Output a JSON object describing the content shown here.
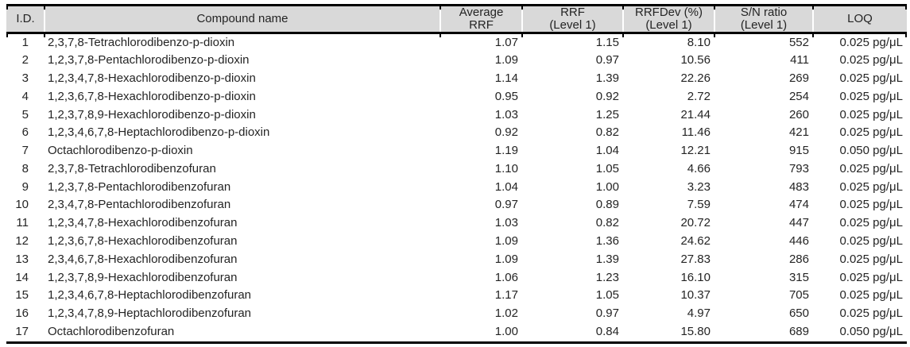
{
  "table": {
    "columns": [
      {
        "key": "id",
        "label": "I.D."
      },
      {
        "key": "name",
        "label": "Compound name"
      },
      {
        "key": "avg_rrf",
        "label": "Average\nRRF"
      },
      {
        "key": "rrf_level1",
        "label": "RRF\n(Level 1)"
      },
      {
        "key": "rrfdev_level1",
        "label": "RRFDev (%)\n(Level 1)"
      },
      {
        "key": "sn_ratio_level1",
        "label": "S/N ratio\n(Level 1)"
      },
      {
        "key": "loq",
        "label": "LOQ"
      }
    ],
    "rows": [
      {
        "id": "1",
        "name": "2,3,7,8-Tetrachlorodibenzo-p-dioxin",
        "avg_rrf": "1.07",
        "rrf_level1": "1.15",
        "rrfdev_level1": "8.10",
        "sn_ratio_level1": "552",
        "loq": "0.025 pg/μL"
      },
      {
        "id": "2",
        "name": "1,2,3,7,8-Pentachlorodibenzo-p-dioxin",
        "avg_rrf": "1.09",
        "rrf_level1": "0.97",
        "rrfdev_level1": "10.56",
        "sn_ratio_level1": "411",
        "loq": "0.025 pg/μL"
      },
      {
        "id": "3",
        "name": "1,2,3,4,7,8-Hexachlorodibenzo-p-dioxin",
        "avg_rrf": "1.14",
        "rrf_level1": "1.39",
        "rrfdev_level1": "22.26",
        "sn_ratio_level1": "269",
        "loq": "0.025 pg/μL"
      },
      {
        "id": "4",
        "name": "1,2,3,6,7,8-Hexachlorodibenzo-p-dioxin",
        "avg_rrf": "0.95",
        "rrf_level1": "0.92",
        "rrfdev_level1": "2.72",
        "sn_ratio_level1": "254",
        "loq": "0.025 pg/μL"
      },
      {
        "id": "5",
        "name": "1,2,3,7,8,9-Hexachlorodibenzo-p-dioxin",
        "avg_rrf": "1.03",
        "rrf_level1": "1.25",
        "rrfdev_level1": "21.44",
        "sn_ratio_level1": "260",
        "loq": "0.025 pg/μL"
      },
      {
        "id": "6",
        "name": "1,2,3,4,6,7,8-Heptachlorodibenzo-p-dioxin",
        "avg_rrf": "0.92",
        "rrf_level1": "0.82",
        "rrfdev_level1": "11.46",
        "sn_ratio_level1": "421",
        "loq": "0.025 pg/μL"
      },
      {
        "id": "7",
        "name": "Octachlorodibenzo-p-dioxin",
        "avg_rrf": "1.19",
        "rrf_level1": "1.04",
        "rrfdev_level1": "12.21",
        "sn_ratio_level1": "915",
        "loq": "0.050 pg/μL"
      },
      {
        "id": "8",
        "name": "2,3,7,8-Tetrachlorodibenzofuran",
        "avg_rrf": "1.10",
        "rrf_level1": "1.05",
        "rrfdev_level1": "4.66",
        "sn_ratio_level1": "793",
        "loq": "0.025 pg/μL"
      },
      {
        "id": "9",
        "name": "1,2,3,7,8-Pentachlorodibenzofuran",
        "avg_rrf": "1.04",
        "rrf_level1": "1.00",
        "rrfdev_level1": "3.23",
        "sn_ratio_level1": "483",
        "loq": "0.025 pg/μL"
      },
      {
        "id": "10",
        "name": "2,3,4,7,8-Pentachlorodibenzofuran",
        "avg_rrf": "0.97",
        "rrf_level1": "0.89",
        "rrfdev_level1": "7.59",
        "sn_ratio_level1": "474",
        "loq": "0.025 pg/μL"
      },
      {
        "id": "11",
        "name": "1,2,3,4,7,8-Hexachlorodibenzofuran",
        "avg_rrf": "1.03",
        "rrf_level1": "0.82",
        "rrfdev_level1": "20.72",
        "sn_ratio_level1": "447",
        "loq": "0.025 pg/μL"
      },
      {
        "id": "12",
        "name": "1,2,3,6,7,8-Hexachlorodibenzofuran",
        "avg_rrf": "1.09",
        "rrf_level1": "1.36",
        "rrfdev_level1": "24.62",
        "sn_ratio_level1": "446",
        "loq": "0.025 pg/μL"
      },
      {
        "id": "13",
        "name": "2,3,4,6,7,8-Hexachlorodibenzofuran",
        "avg_rrf": "1.09",
        "rrf_level1": "1.39",
        "rrfdev_level1": "27.83",
        "sn_ratio_level1": "286",
        "loq": "0.025 pg/μL"
      },
      {
        "id": "14",
        "name": "1,2,3,7,8,9-Hexachlorodibenzofuran",
        "avg_rrf": "1.06",
        "rrf_level1": "1.23",
        "rrfdev_level1": "16.10",
        "sn_ratio_level1": "315",
        "loq": "0.025 pg/μL"
      },
      {
        "id": "15",
        "name": "1,2,3,4,6,7,8-Heptachlorodibenzofuran",
        "avg_rrf": "1.17",
        "rrf_level1": "1.05",
        "rrfdev_level1": "10.37",
        "sn_ratio_level1": "705",
        "loq": "0.025 pg/μL"
      },
      {
        "id": "16",
        "name": "1,2,3,4,7,8,9-Heptachlorodibenzofuran",
        "avg_rrf": "1.02",
        "rrf_level1": "0.97",
        "rrfdev_level1": "4.97",
        "sn_ratio_level1": "650",
        "loq": "0.025 pg/μL"
      },
      {
        "id": "17",
        "name": "Octachlorodibenzofuran",
        "avg_rrf": "1.00",
        "rrf_level1": "0.84",
        "rrfdev_level1": "15.80",
        "sn_ratio_level1": "689",
        "loq": "0.050 pg/μL"
      }
    ]
  },
  "colors": {
    "header_bg": "#d9d9d9",
    "text": "#242424",
    "rule": "#000000"
  }
}
